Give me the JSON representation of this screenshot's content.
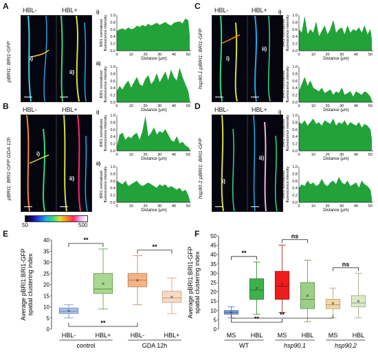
{
  "panels": {
    "A": {
      "letter": "A",
      "hbl_minus": "HBL-",
      "hbl_plus": "HBL+",
      "ylabel": "pBRI1: BRI1-GFP",
      "roi_i": "i)",
      "roi_ii": "ii)"
    },
    "B": {
      "letter": "B",
      "hbl_minus": "HBL-",
      "hbl_plus": "HBL+",
      "ylabel": "pBRI1: BRI1-GFP GDA 12h",
      "roi_i": "i)",
      "roi_ii": "ii)"
    },
    "C": {
      "letter": "C",
      "hbl_minus": "HBL-",
      "hbl_plus": "HBL+",
      "ylabel": "hsp90.1 pBRI1: BRI1-GFP",
      "roi_i": "i)",
      "roi_ii": "ii)"
    },
    "D": {
      "letter": "D",
      "hbl_minus": "HBL-",
      "hbl_plus": "HBL+",
      "ylabel": "hsp90.2 pBRI1: BRI1-GFP",
      "roi_i": "i)",
      "roi_ii": "ii)"
    }
  },
  "colorbar": {
    "min": "50",
    "max": "500",
    "stops": [
      "#000000",
      "#1a0a8a",
      "#1f4fe0",
      "#18b0e8",
      "#2ee07a",
      "#d8e23a",
      "#ff8a1a",
      "#ff2a6a",
      "#ffb0e8",
      "#ffffff"
    ]
  },
  "profiles": {
    "ylabel_lines": [
      "BRI1 normalized",
      "fluorescence intensity"
    ],
    "xlabel": "Distance (μm)",
    "y_ticks": [
      "0.0",
      "0.2",
      "0.4",
      "0.6",
      "0.8",
      "1.0"
    ],
    "x_ticks": [
      "0",
      "10",
      "20",
      "30",
      "40",
      "50"
    ],
    "fill_color": "#22a33a",
    "subplot_labels": [
      "i)",
      "ii)"
    ]
  },
  "chart_data": [
    {
      "type": "area",
      "panel": "A i)",
      "x_range": [
        0,
        52
      ],
      "ylim": [
        0,
        1
      ],
      "xlabel": "Distance (μm)",
      "ylabel": "BRI1 normalized fluorescence intensity",
      "x": [
        0,
        2,
        4,
        6,
        8,
        10,
        12,
        14,
        16,
        18,
        20,
        22,
        24,
        26,
        28,
        30,
        32,
        34,
        36,
        38,
        40,
        42,
        44,
        46,
        48,
        50,
        51
      ],
      "y": [
        0.55,
        0.6,
        0.62,
        0.58,
        0.65,
        0.6,
        0.62,
        0.7,
        0.66,
        0.72,
        0.68,
        0.75,
        0.7,
        0.74,
        0.78,
        0.72,
        0.76,
        0.8,
        0.74,
        0.7,
        0.78,
        0.8,
        0.82,
        0.76,
        0.9,
        0.85,
        0.4
      ]
    },
    {
      "type": "area",
      "panel": "A ii)",
      "x_range": [
        0,
        52
      ],
      "ylim": [
        0,
        1
      ],
      "xlabel": "Distance (μm)",
      "ylabel": "BRI1 normalized fluorescence intensity",
      "x": [
        0,
        2,
        4,
        6,
        8,
        10,
        12,
        14,
        16,
        18,
        20,
        22,
        24,
        26,
        28,
        30,
        32,
        34,
        36,
        38,
        40,
        42,
        44,
        46,
        48,
        50,
        51
      ],
      "y": [
        0.3,
        0.45,
        0.35,
        0.5,
        0.6,
        0.4,
        0.55,
        0.7,
        0.5,
        0.45,
        0.65,
        0.75,
        0.5,
        0.6,
        0.8,
        0.55,
        0.7,
        0.85,
        0.6,
        0.9,
        0.7,
        0.6,
        0.95,
        0.7,
        0.5,
        0.3,
        0.05
      ]
    },
    {
      "type": "area",
      "panel": "B i)",
      "x_range": [
        0,
        52
      ],
      "ylim": [
        0,
        1
      ],
      "xlabel": "Distance (μm)",
      "ylabel": "BRI1 normalized fluorescence intensity",
      "x": [
        0,
        2,
        4,
        6,
        8,
        10,
        12,
        14,
        16,
        18,
        20,
        22,
        24,
        26,
        28,
        30,
        32,
        34,
        36,
        38,
        40,
        42,
        44,
        46,
        48,
        50,
        51
      ],
      "y": [
        0.1,
        0.45,
        0.5,
        0.3,
        0.4,
        0.35,
        0.45,
        0.5,
        0.3,
        0.55,
        0.95,
        0.4,
        0.5,
        0.65,
        0.45,
        0.55,
        0.5,
        0.6,
        0.45,
        0.3,
        0.25,
        0.4,
        0.2,
        0.25,
        0.15,
        0.1,
        0.05
      ]
    },
    {
      "type": "area",
      "panel": "B ii)",
      "x_range": [
        0,
        52
      ],
      "ylim": [
        0,
        1
      ],
      "xlabel": "Distance (μm)",
      "ylabel": "BRI1 normalized fluorescence intensity",
      "x": [
        0,
        2,
        4,
        6,
        8,
        10,
        12,
        14,
        16,
        18,
        20,
        22,
        24,
        26,
        28,
        30,
        32,
        34,
        36,
        38,
        40,
        42,
        44,
        46,
        48,
        50,
        51
      ],
      "y": [
        0.6,
        0.55,
        0.5,
        0.6,
        0.45,
        0.5,
        0.55,
        0.6,
        0.5,
        0.45,
        0.5,
        0.55,
        0.5,
        0.45,
        0.4,
        0.5,
        0.45,
        0.5,
        0.4,
        0.45,
        0.4,
        0.35,
        0.4,
        0.3,
        0.35,
        0.2,
        0.05
      ]
    },
    {
      "type": "area",
      "panel": "C i)",
      "x_range": [
        0,
        52
      ],
      "ylim": [
        0,
        1
      ],
      "xlabel": "Distance (μm)",
      "ylabel": "BRI1 normalized fluorescence intensity",
      "x": [
        0,
        2,
        4,
        6,
        8,
        10,
        12,
        14,
        16,
        18,
        20,
        22,
        24,
        26,
        28,
        30,
        32,
        34,
        36,
        38,
        40,
        42,
        44,
        46,
        48,
        50,
        51
      ],
      "y": [
        0.6,
        0.5,
        0.95,
        0.45,
        0.6,
        0.5,
        0.8,
        0.4,
        0.55,
        0.7,
        0.45,
        0.6,
        0.85,
        0.5,
        0.6,
        0.65,
        0.45,
        0.7,
        0.5,
        0.6,
        0.55,
        0.65,
        0.5,
        0.7,
        0.45,
        0.6,
        0.3
      ]
    },
    {
      "type": "area",
      "panel": "C ii)",
      "x_range": [
        0,
        52
      ],
      "ylim": [
        0,
        1
      ],
      "xlabel": "Distance (μm)",
      "ylabel": "BRI1 normalized fluorescence intensity",
      "x": [
        0,
        2,
        4,
        6,
        8,
        10,
        12,
        14,
        16,
        18,
        20,
        22,
        24,
        26,
        28,
        30,
        32,
        34,
        36,
        38,
        40,
        42,
        44,
        46,
        48,
        50,
        51
      ],
      "y": [
        0.3,
        0.5,
        0.7,
        0.45,
        0.6,
        0.4,
        0.35,
        0.3,
        0.4,
        0.25,
        0.3,
        0.35,
        0.2,
        0.3,
        0.25,
        0.4,
        0.2,
        0.25,
        0.3,
        0.15,
        0.3,
        0.25,
        0.2,
        0.3,
        0.25,
        0.15,
        0.05
      ]
    },
    {
      "type": "area",
      "panel": "D i)",
      "x_range": [
        0,
        52
      ],
      "ylim": [
        0,
        1
      ],
      "xlabel": "Distance (μm)",
      "ylabel": "BRI1 normalized fluorescence intensity",
      "x": [
        0,
        2,
        4,
        6,
        8,
        10,
        12,
        14,
        16,
        18,
        20,
        22,
        24,
        26,
        28,
        30,
        32,
        34,
        36,
        38,
        40,
        42,
        44,
        46,
        48,
        50,
        51
      ],
      "y": [
        0.8,
        0.75,
        0.85,
        0.7,
        0.8,
        0.9,
        0.75,
        0.8,
        0.7,
        0.85,
        0.8,
        0.75,
        0.9,
        0.7,
        0.8,
        0.75,
        0.85,
        0.7,
        0.8,
        0.75,
        0.7,
        0.8,
        0.65,
        0.75,
        0.7,
        0.6,
        0.3
      ]
    },
    {
      "type": "area",
      "panel": "D ii)",
      "x_range": [
        0,
        52
      ],
      "ylim": [
        0,
        1
      ],
      "xlabel": "Distance (μm)",
      "ylabel": "BRI1 normalized fluorescence intensity",
      "x": [
        0,
        2,
        4,
        6,
        8,
        10,
        12,
        14,
        16,
        18,
        20,
        22,
        24,
        26,
        28,
        30,
        32,
        34,
        36,
        38,
        40,
        42,
        44,
        46,
        48,
        50,
        51
      ],
      "y": [
        0.4,
        0.5,
        0.45,
        0.6,
        0.5,
        0.55,
        0.45,
        0.5,
        0.65,
        0.5,
        0.45,
        0.55,
        0.6,
        0.5,
        0.7,
        0.55,
        0.5,
        0.6,
        0.45,
        0.5,
        0.55,
        0.4,
        0.6,
        0.5,
        0.45,
        0.35,
        0.1
      ]
    },
    {
      "type": "box",
      "panel": "E",
      "ylabel_lines": [
        "Average pBRI1:BRI1-GFP",
        "spatial clustering index"
      ],
      "ylim": [
        0,
        40
      ],
      "y_ticks": [
        0,
        5,
        10,
        15,
        20,
        25,
        30,
        35,
        40
      ],
      "categories": [
        "HBL-",
        "HBL+",
        "HBL-",
        "HBL+"
      ],
      "groups": [
        {
          "label": "control",
          "span": [
            0,
            1
          ]
        },
        {
          "label": "GDA 12h",
          "span": [
            2,
            3
          ]
        }
      ],
      "boxes": [
        {
          "q1": 7,
          "median": 8,
          "q3": 9.5,
          "mean": 8.3,
          "whisker_low": 5,
          "whisker_high": 11,
          "fill": "#a9c1e6",
          "edge": "#6f86b8"
        },
        {
          "q1": 16,
          "median": 18,
          "q3": 25,
          "mean": 20.5,
          "whisker_low": 9,
          "whisker_high": 36,
          "fill": "#a9d88f",
          "edge": "#5f8f4a"
        },
        {
          "q1": 19,
          "median": 22,
          "q3": 25,
          "mean": 22,
          "whisker_low": 11,
          "whisker_high": 33,
          "fill": "#f2b487",
          "edge": "#c17a45"
        },
        {
          "q1": 12,
          "median": 14,
          "q3": 17,
          "mean": 14.5,
          "whisker_low": 7,
          "whisker_high": 23,
          "fill": "#f7d9c4",
          "edge": "#c99a7a"
        }
      ],
      "significance": [
        {
          "from": 0,
          "to": 1,
          "text": "**"
        },
        {
          "from": 2,
          "to": 3,
          "text": "**"
        },
        {
          "from": 0,
          "to": 2,
          "text": "**"
        }
      ]
    },
    {
      "type": "box",
      "panel": "F",
      "ylabel_lines": [
        "Average pBRI1:BRI1-GFP",
        "spatial clustering index"
      ],
      "ylim": [
        0,
        50
      ],
      "y_ticks": [
        0,
        5,
        10,
        15,
        20,
        25,
        30,
        35,
        40,
        45,
        50
      ],
      "categories": [
        "MS",
        "HBL",
        "MS",
        "HBL",
        "MS",
        "HBL"
      ],
      "groups": [
        {
          "label": "WT",
          "span": [
            0,
            1
          ]
        },
        {
          "label": "hsp90.1",
          "span": [
            2,
            3
          ]
        },
        {
          "label": "hsp90.2",
          "span": [
            4,
            5
          ]
        }
      ],
      "boxes": [
        {
          "q1": 8,
          "median": 9,
          "q3": 10,
          "mean": 9,
          "whisker_low": 6,
          "whisker_high": 12,
          "fill": "#7b9ed4",
          "edge": "#4a6ea8"
        },
        {
          "q1": 16,
          "median": 21,
          "q3": 27,
          "mean": 22,
          "whisker_low": 8,
          "whisker_high": 36,
          "fill": "#3fb14b",
          "edge": "#1f7a2a"
        },
        {
          "q1": 16,
          "median": 23,
          "q3": 31,
          "mean": 24,
          "whisker_low": 9,
          "whisker_high": 45,
          "fill": "#ee1c1c",
          "edge": "#9a0f0f"
        },
        {
          "q1": 11,
          "median": 16,
          "q3": 25,
          "mean": 18,
          "whisker_low": 4,
          "whisker_high": 37,
          "fill": "#9bcf86",
          "edge": "#5f8f4a"
        },
        {
          "q1": 11,
          "median": 13,
          "q3": 16,
          "mean": 14,
          "whisker_low": 6,
          "whisker_high": 22,
          "fill": "#eed8a8",
          "edge": "#b89a5f"
        },
        {
          "q1": 12,
          "median": 14,
          "q3": 18,
          "mean": 15,
          "whisker_low": 6,
          "whisker_high": 30,
          "fill": "#dbe9c8",
          "edge": "#8fa77a"
        }
      ],
      "significance": [
        {
          "from": 0,
          "to": 1,
          "text": "**"
        },
        {
          "from": 2,
          "to": 3,
          "text": "ns"
        },
        {
          "from": 4,
          "to": 5,
          "text": "ns"
        },
        {
          "from": 0,
          "to": 2,
          "text": "**"
        },
        {
          "from": 0,
          "to": 4,
          "text": "**"
        }
      ]
    }
  ],
  "panel_letters": {
    "E": "E",
    "F": "F"
  }
}
